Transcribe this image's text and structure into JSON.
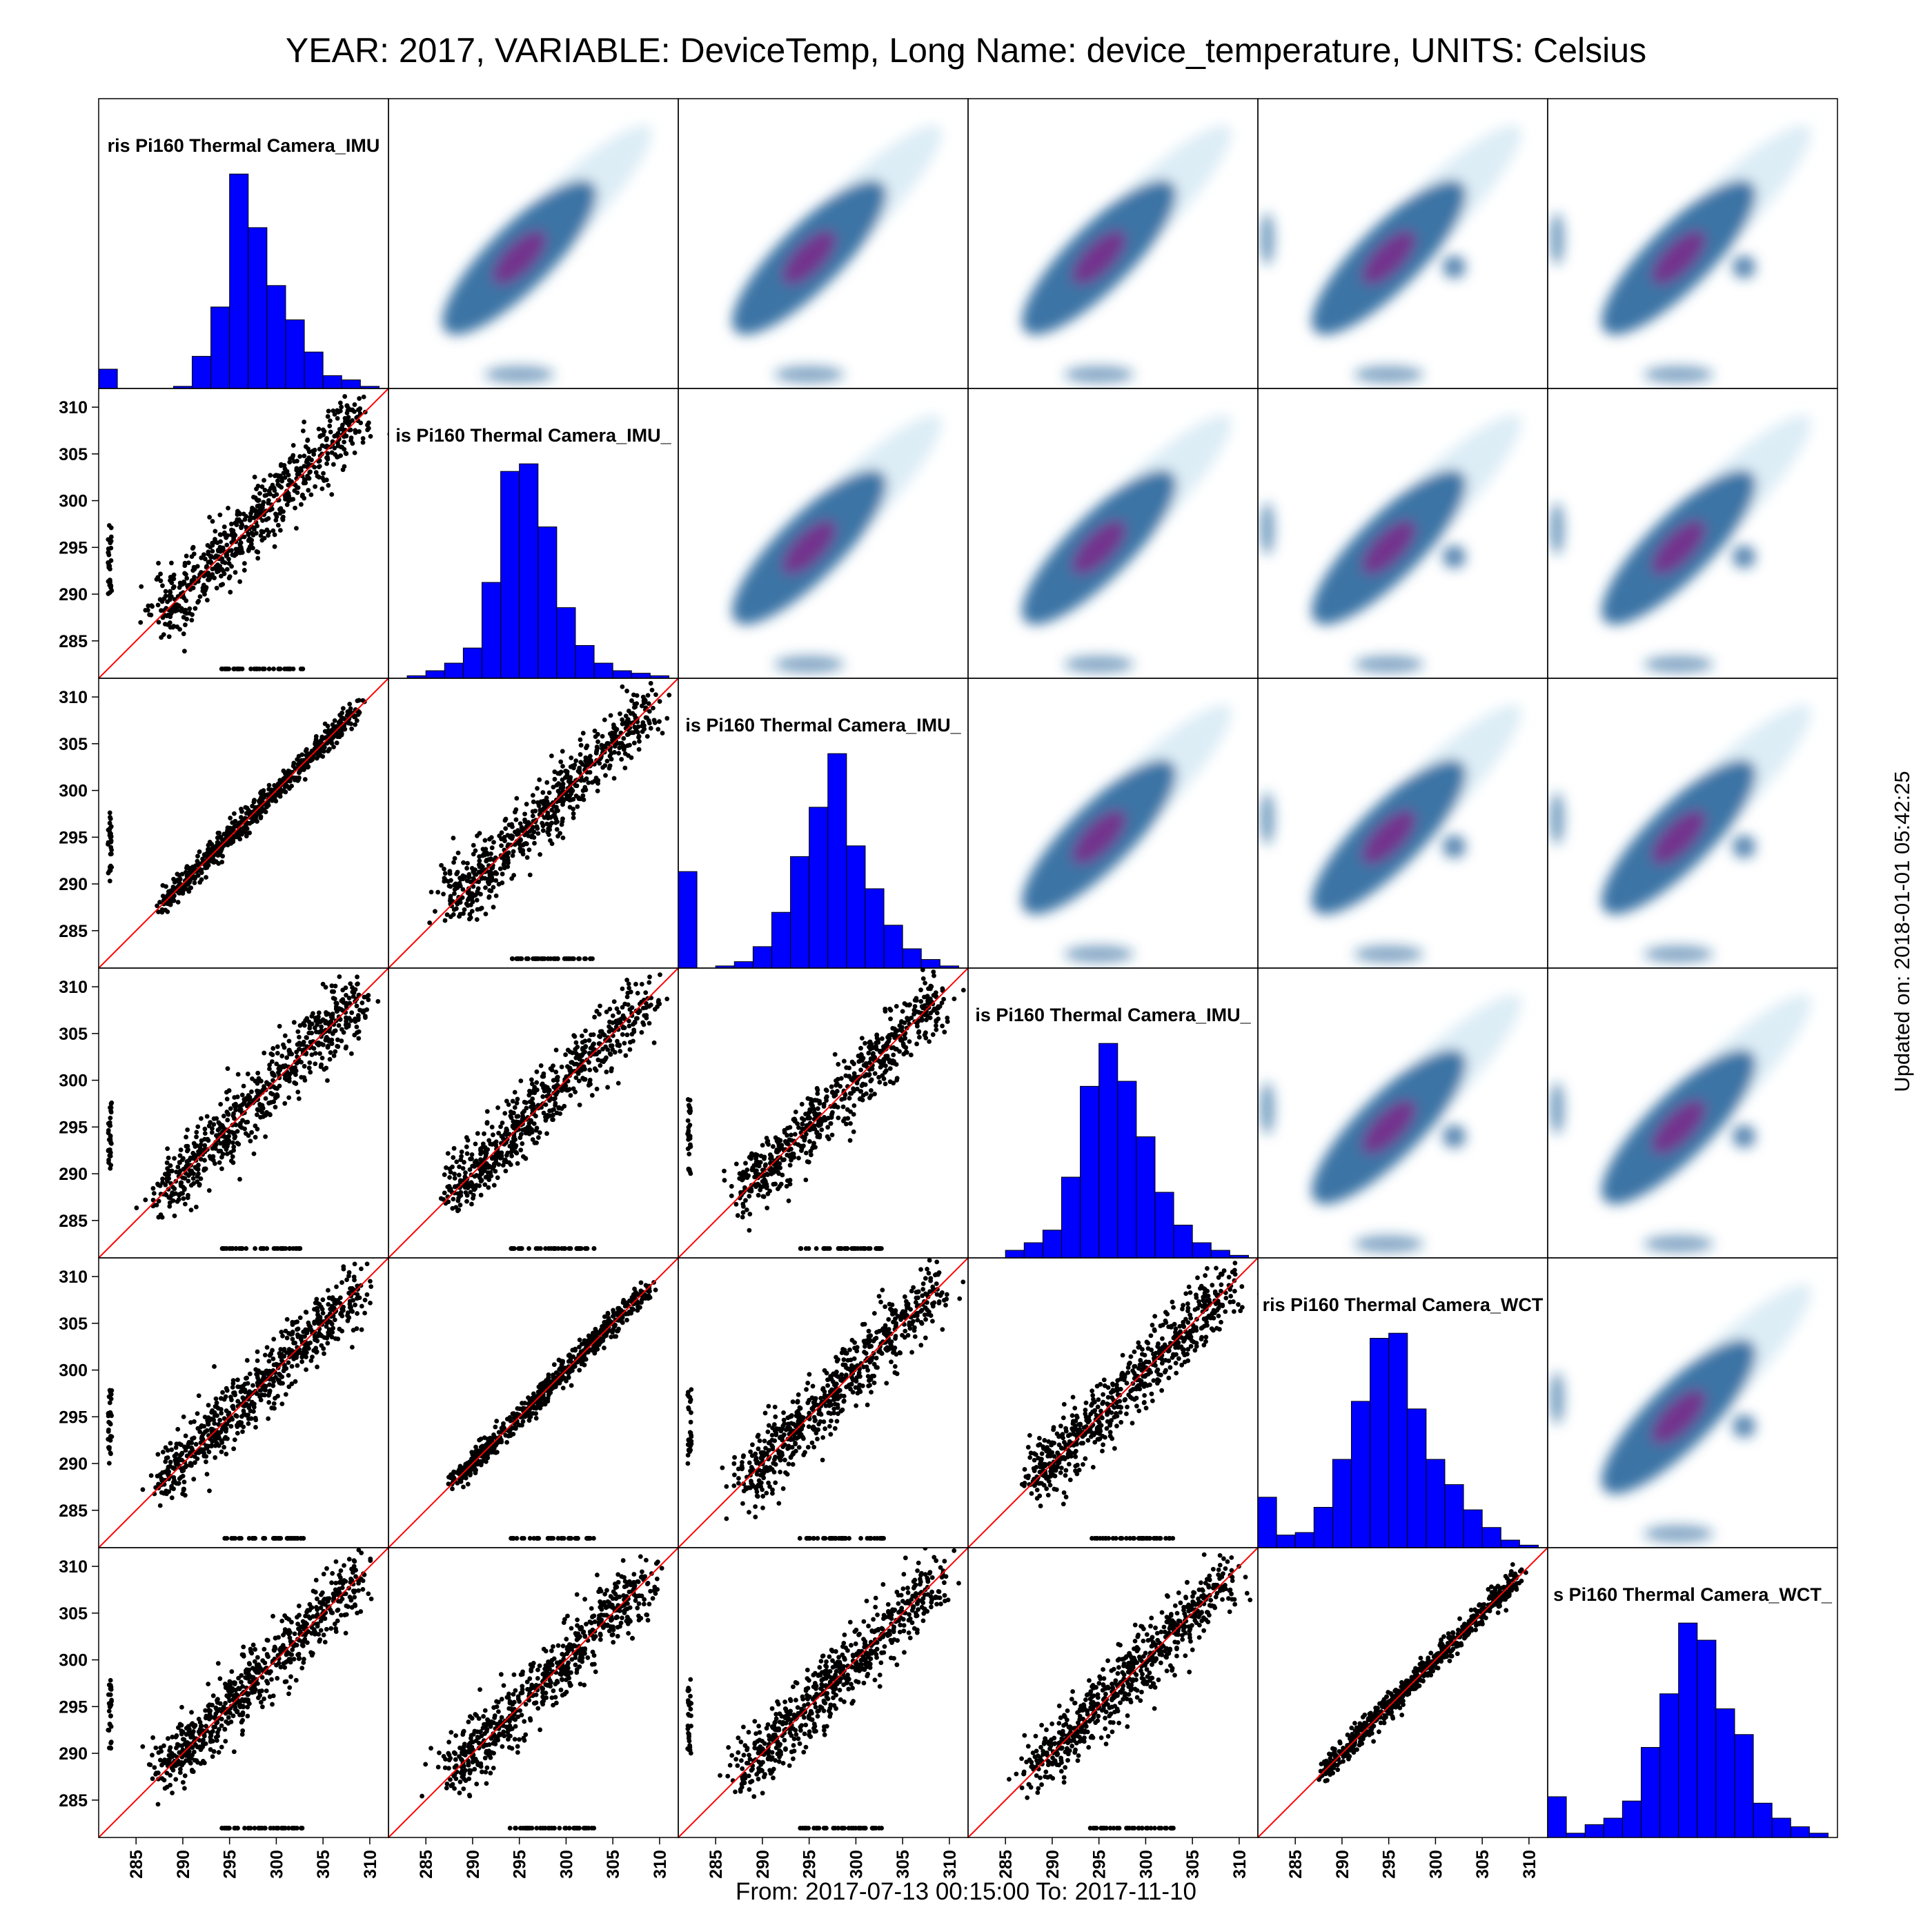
{
  "title": "YEAR: 2017, VARIABLE: DeviceTemp, Long Name: device_temperature, UNITS: Celsius",
  "footer": "From: 2017-07-13 00:15:00 To: 2017-11-10",
  "updated": "Updated on: 2018-01-01 05:42:25",
  "colors": {
    "hist_fill": "#0000ff",
    "scatter_point": "#000000",
    "identity_line": "#ff0000",
    "density_low": "#cfe6f2",
    "density_mid": "#1f5f98",
    "density_high": "#7a2a8c"
  },
  "chart_data": {
    "type": "scatter",
    "subtype": "scatterplot-matrix",
    "n_variables": 6,
    "variables": [
      "ris Pi160 Thermal Camera_IMU",
      "is Pi160 Thermal Camera_IMU_",
      "is Pi160 Thermal Camera_IMU_",
      "is Pi160 Thermal Camera_IMU_",
      "ris Pi160 Thermal Camera_WCT",
      "s Pi160 Thermal Camera_WCT_"
    ],
    "axis_range": [
      281,
      312
    ],
    "ticks": [
      285,
      290,
      295,
      300,
      305,
      310
    ],
    "lower_panels": "scatter with red 1:1 line",
    "upper_panels": "smoothed 2D density",
    "histograms": {
      "bin_edges": [
        281,
        283,
        285,
        287,
        289,
        291,
        293,
        295,
        297,
        299,
        301,
        303,
        305,
        307,
        309,
        311
      ],
      "counts": [
        [
          9,
          0,
          0,
          0,
          1,
          15,
          38,
          100,
          75,
          48,
          32,
          17,
          6,
          4,
          1
        ],
        [
          0,
          1,
          3,
          6,
          12,
          38,
          82,
          85,
          60,
          28,
          13,
          6,
          3,
          2,
          1
        ],
        [
          45,
          0,
          1,
          3,
          10,
          26,
          52,
          75,
          100,
          57,
          37,
          20,
          9,
          4,
          1
        ],
        [
          0,
          0,
          3,
          6,
          11,
          32,
          68,
          85,
          70,
          48,
          26,
          13,
          6,
          3,
          1
        ],
        [
          20,
          5,
          6,
          16,
          35,
          58,
          83,
          85,
          55,
          35,
          25,
          15,
          8,
          3,
          1
        ],
        [
          19,
          2,
          6,
          9,
          17,
          42,
          67,
          100,
          92,
          60,
          48,
          16,
          9,
          5,
          2
        ]
      ]
    }
  }
}
